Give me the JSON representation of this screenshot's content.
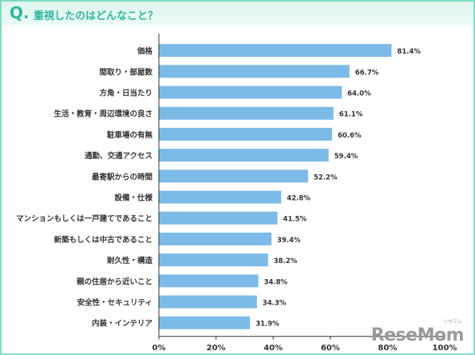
{
  "header": {
    "q_mark": "Q.",
    "title": "重視したのはどんなこと？"
  },
  "logo": {
    "text_main": "ReseMom",
    "text_sub": "リセマム"
  },
  "colors": {
    "bar": "#7cbae8",
    "accent": "#2bb9a0",
    "axis": "#333333"
  },
  "chart_data": {
    "type": "bar",
    "orientation": "horizontal",
    "categories": [
      "価格",
      "間取り・部屋数",
      "方角・日当たり",
      "生活・教育・周辺環境の良さ",
      "駐車場の有無",
      "通勤、交通アクセス",
      "最寄駅からの時間",
      "設備・仕様",
      "マンションもしくは一戸建てであること",
      "新築もしくは中古であること",
      "耐久性・構造",
      "親の住居から近いこと",
      "安全性・セキュリティ",
      "内装・インテリア"
    ],
    "values": [
      81.4,
      66.7,
      64.0,
      61.1,
      60.6,
      59.4,
      52.2,
      42.8,
      41.5,
      39.4,
      38.2,
      34.8,
      34.3,
      31.9
    ],
    "value_labels": [
      "81.4%",
      "66.7%",
      "64.0%",
      "61.1%",
      "60.6%",
      "59.4%",
      "52.2%",
      "42.8%",
      "41.5%",
      "39.4%",
      "38.2%",
      "34.8%",
      "34.3%",
      "31.9%"
    ],
    "xlim": [
      0,
      100
    ],
    "xticks": [
      0,
      20,
      40,
      60,
      80,
      100
    ],
    "xtick_labels": [
      "0%",
      "20%",
      "40%",
      "60%",
      "80%",
      "100%"
    ],
    "grid": false,
    "legend": "none"
  }
}
